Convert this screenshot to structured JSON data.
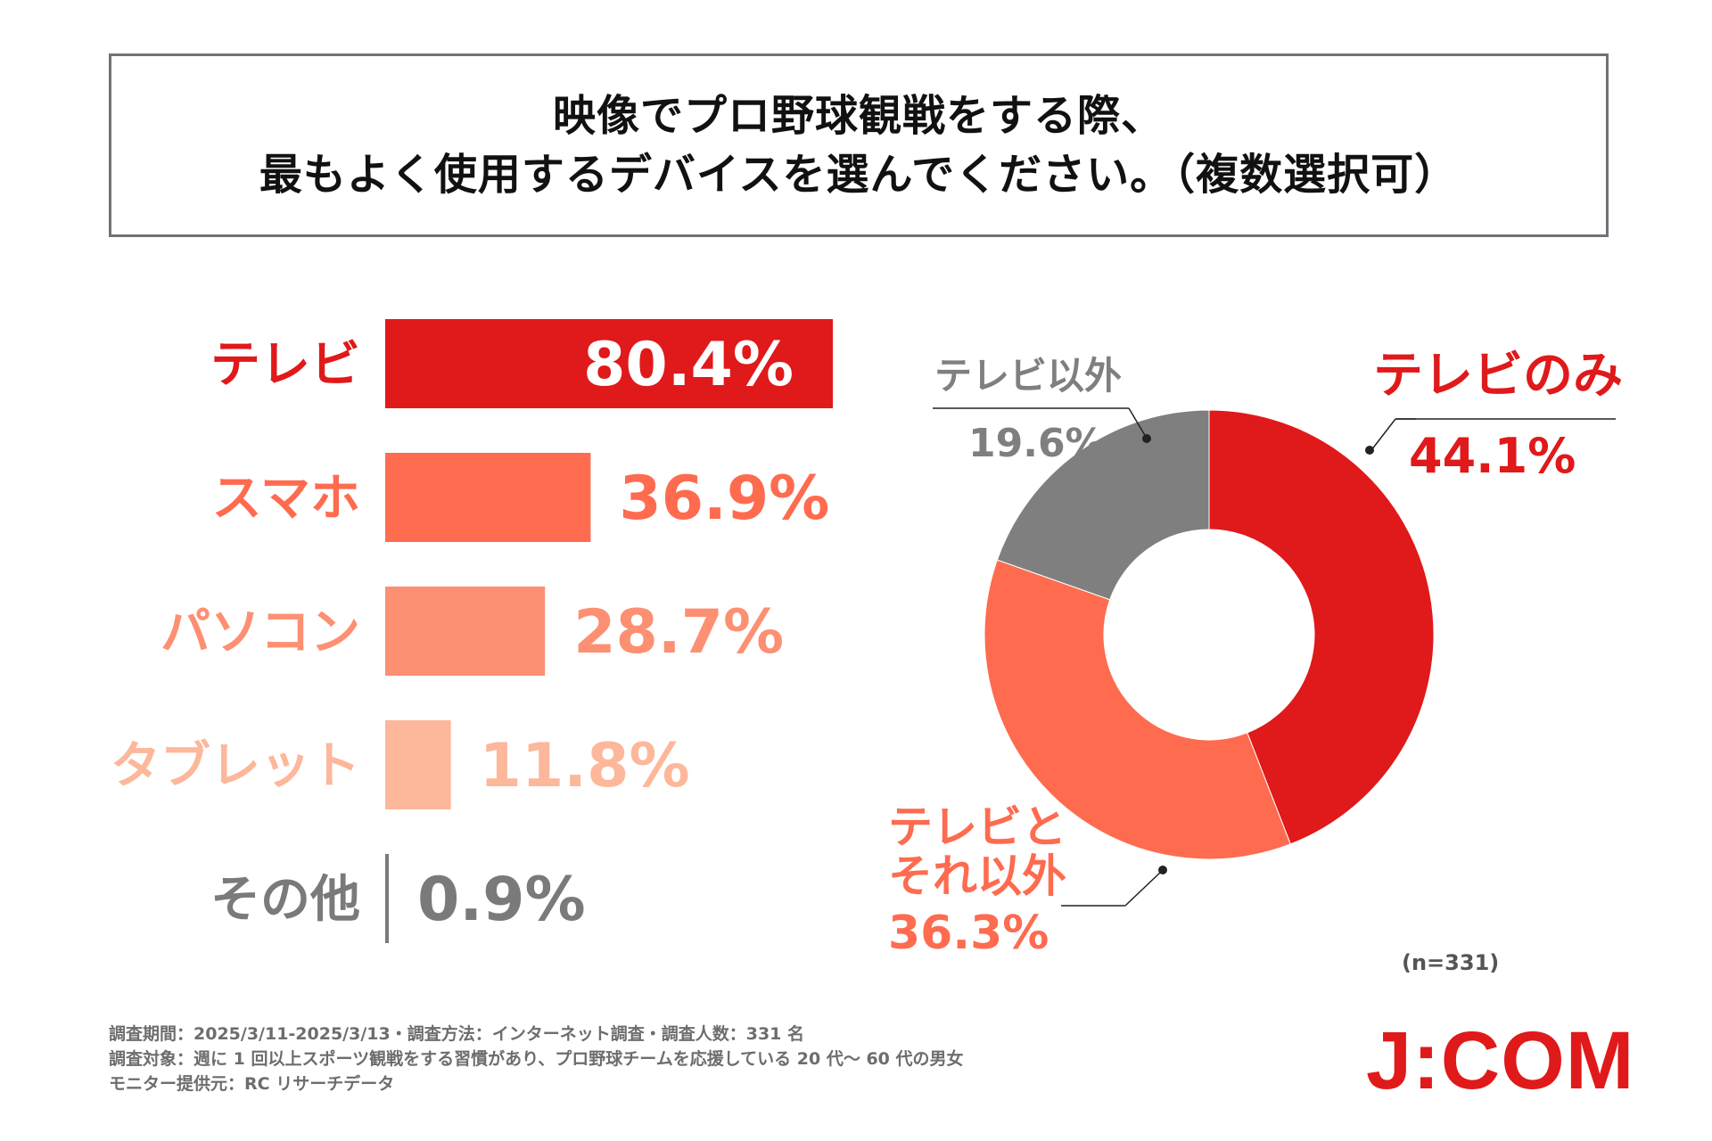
{
  "title": {
    "line1": "映像でプロ野球観戦をする際、",
    "line2": "最もよく使用するデバイスを選んでください。（複数選択可）"
  },
  "chart_data": [
    {
      "type": "bar",
      "orientation": "horizontal",
      "categories": [
        "テレビ",
        "スマホ",
        "パソコン",
        "タブレット",
        "その他"
      ],
      "values": [
        80.4,
        36.9,
        28.7,
        11.8,
        0.9
      ],
      "value_labels": [
        "80.4%",
        "36.9%",
        "28.7%",
        "11.8%",
        "0.9%"
      ],
      "colors": [
        "#e0191a",
        "#fe6b4f",
        "#fd8f73",
        "#fdb79b",
        "#7a7a7a"
      ],
      "xlim": [
        0,
        80.4
      ]
    },
    {
      "type": "pie",
      "style": "donut",
      "slices": [
        {
          "name": "テレビのみ",
          "value": 44.1,
          "label": "44.1%",
          "color": "#e0191a"
        },
        {
          "name": "テレビとそれ以外",
          "name_lines": [
            "テレビと",
            "それ以外"
          ],
          "value": 36.3,
          "label": "36.3%",
          "color": "#fe6b4f"
        },
        {
          "name": "テレビ以外",
          "value": 19.6,
          "label": "19.6%",
          "color": "#7f7f7f"
        }
      ],
      "sample_note": "(n=331)"
    }
  ],
  "footer": {
    "line1": "調査期間：2025/3/11-2025/3/13・調査方法：インターネット調査・調査人数：331 名",
    "line2": "調査対象：週に 1 回以上スポーツ観戦をする習慣があり、プロ野球チームを応援している 20 代～ 60 代の男女",
    "line3": "モニター提供元：RC リサーチデータ"
  },
  "logo": {
    "text": "J:COM",
    "color": "#e0191a"
  }
}
